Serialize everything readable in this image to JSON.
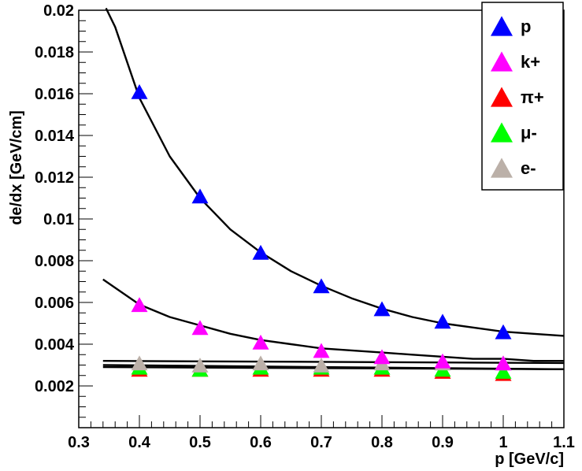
{
  "chart_data": {
    "type": "scatter",
    "title": "",
    "xlabel": "p [GeV/c]",
    "ylabel": "de/dx [GeV/cm]",
    "xlim": [
      0.3,
      1.1
    ],
    "ylim": [
      0.0,
      0.02
    ],
    "x_ticks": [
      0.3,
      0.4,
      0.5,
      0.6,
      0.7,
      0.8,
      0.9,
      1.0,
      1.1
    ],
    "x_tick_labels": [
      "0.3",
      "0.4",
      "0.5",
      "0.6",
      "0.7",
      "0.8",
      "0.9",
      "1",
      "1.1"
    ],
    "y_ticks": [
      0.002,
      0.004,
      0.006,
      0.008,
      0.01,
      0.012,
      0.014,
      0.016,
      0.018,
      0.02
    ],
    "y_tick_labels": [
      "0.002",
      "0.004",
      "0.006",
      "0.008",
      "0.01",
      "0.012",
      "0.014",
      "0.016",
      "0.018",
      "0.02"
    ],
    "legend_position": "top-right",
    "series": [
      {
        "name": "p",
        "color": "#0000ff",
        "x": [
          0.4,
          0.5,
          0.6,
          0.7,
          0.8,
          0.9,
          1.0
        ],
        "values": [
          0.0161,
          0.0111,
          0.0084,
          0.0068,
          0.0057,
          0.0051,
          0.0046
        ]
      },
      {
        "name": "k+",
        "color": "#ff00ff",
        "x": [
          0.4,
          0.5,
          0.6,
          0.7,
          0.8,
          0.9,
          1.0
        ],
        "values": [
          0.0059,
          0.0048,
          0.0041,
          0.0037,
          0.0034,
          0.0032,
          0.0031
        ]
      },
      {
        "name": "π+",
        "color": "#ff0000",
        "x": [
          0.4,
          0.5,
          0.6,
          0.7,
          0.8,
          0.9,
          1.0
        ],
        "values": [
          0.0028,
          0.0028,
          0.0028,
          0.0028,
          0.0028,
          0.0027,
          0.0026
        ]
      },
      {
        "name": "μ-",
        "color": "#00ff00",
        "x": [
          0.4,
          0.5,
          0.6,
          0.7,
          0.8,
          0.9,
          1.0
        ],
        "values": [
          0.0029,
          0.0028,
          0.0029,
          0.0029,
          0.0029,
          0.0028,
          0.0027
        ]
      },
      {
        "name": "e-",
        "color": "#bbb0a8",
        "x": [
          0.4,
          0.5,
          0.6,
          0.7,
          0.8,
          0.9,
          1.0
        ],
        "values": [
          0.0031,
          0.003,
          0.0031,
          0.003,
          0.0031,
          0.0031,
          0.0031
        ]
      }
    ],
    "fit_curves": [
      {
        "name": "p-fit",
        "x": [
          0.345,
          0.36,
          0.4,
          0.45,
          0.5,
          0.55,
          0.6,
          0.65,
          0.7,
          0.75,
          0.8,
          0.85,
          0.9,
          0.95,
          1.0,
          1.05,
          1.1
        ],
        "values": [
          0.0201,
          0.0192,
          0.0158,
          0.013,
          0.011,
          0.0095,
          0.0084,
          0.0075,
          0.0068,
          0.0062,
          0.0057,
          0.0053,
          0.005,
          0.0048,
          0.0046,
          0.0045,
          0.0044
        ]
      },
      {
        "name": "k-fit",
        "x": [
          0.34,
          0.4,
          0.45,
          0.5,
          0.55,
          0.6,
          0.65,
          0.7,
          0.75,
          0.8,
          0.85,
          0.9,
          0.95,
          1.0,
          1.05,
          1.1
        ],
        "values": [
          0.0071,
          0.0059,
          0.0053,
          0.0049,
          0.0045,
          0.0042,
          0.004,
          0.0038,
          0.0037,
          0.0036,
          0.0035,
          0.0034,
          0.0033,
          0.0033,
          0.0032,
          0.0032
        ]
      },
      {
        "name": "e-fit",
        "x": [
          0.34,
          1.1
        ],
        "values": [
          0.0032,
          0.0031
        ]
      },
      {
        "name": "mu-fit",
        "x": [
          0.34,
          1.1
        ],
        "values": [
          0.003,
          0.0028
        ]
      },
      {
        "name": "pi-fit",
        "x": [
          0.34,
          1.1
        ],
        "values": [
          0.0029,
          0.0028
        ]
      }
    ]
  }
}
